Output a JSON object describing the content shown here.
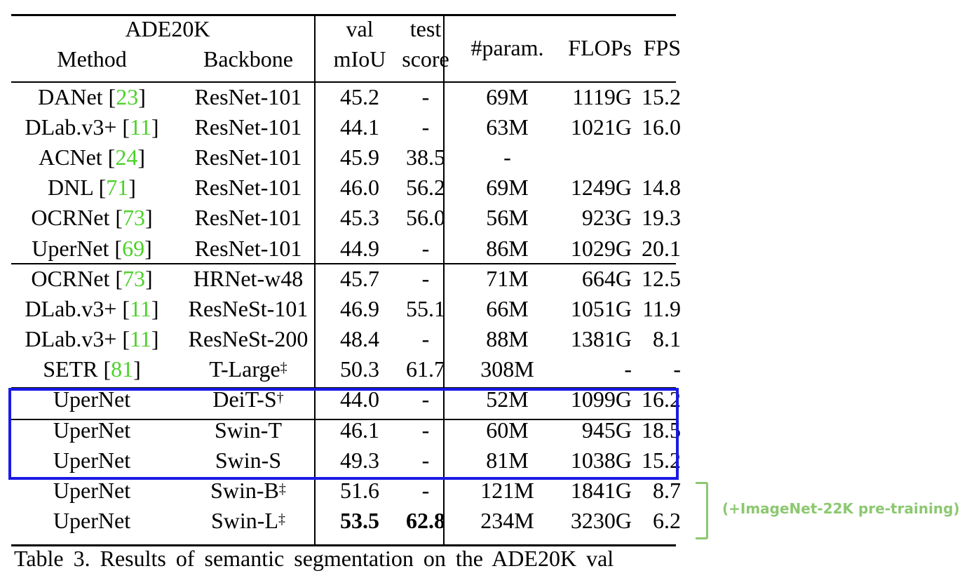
{
  "table": {
    "header": {
      "dataset": "ADE20K",
      "method": "Method",
      "backbone": "Backbone",
      "val_top": "val",
      "val_bottom": "mIoU",
      "test_top": "test",
      "test_bottom": "score",
      "param": "#param.",
      "flops": "FLOPs",
      "fps": "FPS"
    },
    "rows": [
      {
        "method": "DANet [",
        "cite": "23",
        "close": "]",
        "backbone": "ResNet-101",
        "sup": "",
        "val": "45.2",
        "test": "-",
        "param": "69M",
        "flops": "1119G",
        "fps": "15.2"
      },
      {
        "method": "DLab.v3+ [",
        "cite": "11",
        "close": "]",
        "backbone": "ResNet-101",
        "sup": "",
        "val": "44.1",
        "test": "-",
        "param": "63M",
        "flops": "1021G",
        "fps": "16.0"
      },
      {
        "method": "ACNet [",
        "cite": "24",
        "close": "]",
        "backbone": "ResNet-101",
        "sup": "",
        "val": "45.9",
        "test": "38.5",
        "param": "-",
        "flops": "",
        "fps": ""
      },
      {
        "method": "DNL [",
        "cite": "71",
        "close": "]",
        "backbone": "ResNet-101",
        "sup": "",
        "val": "46.0",
        "test": "56.2",
        "param": "69M",
        "flops": "1249G",
        "fps": "14.8"
      },
      {
        "method": "OCRNet [",
        "cite": "73",
        "close": "]",
        "backbone": "ResNet-101",
        "sup": "",
        "val": "45.3",
        "test": "56.0",
        "param": "56M",
        "flops": "923G",
        "fps": "19.3"
      },
      {
        "method": "UperNet [",
        "cite": "69",
        "close": "]",
        "backbone": "ResNet-101",
        "sup": "",
        "val": "44.9",
        "test": "-",
        "param": "86M",
        "flops": "1029G",
        "fps": "20.1"
      },
      {
        "method": "OCRNet [",
        "cite": "73",
        "close": "]",
        "backbone": "HRNet-w48",
        "sup": "",
        "val": "45.7",
        "test": "-",
        "param": "71M",
        "flops": "664G",
        "fps": "12.5"
      },
      {
        "method": "DLab.v3+ [",
        "cite": "11",
        "close": "]",
        "backbone": "ResNeSt-101",
        "sup": "",
        "val": "46.9",
        "test": "55.1",
        "param": "66M",
        "flops": "1051G",
        "fps": "11.9"
      },
      {
        "method": "DLab.v3+ [",
        "cite": "11",
        "close": "]",
        "backbone": "ResNeSt-200",
        "sup": "",
        "val": "48.4",
        "test": "-",
        "param": "88M",
        "flops": "1381G",
        "fps": "8.1"
      },
      {
        "method": "SETR [",
        "cite": "81",
        "close": "]",
        "backbone": "T-Large",
        "sup": "‡",
        "val": "50.3",
        "test": "61.7",
        "param": "308M",
        "flops": "-",
        "fps": "-"
      },
      {
        "method": "UperNet",
        "cite": "",
        "close": "",
        "backbone": "DeiT-S",
        "sup": "†",
        "val": "44.0",
        "test": "-",
        "param": "52M",
        "flops": "1099G",
        "fps": "16.2"
      },
      {
        "method": "UperNet",
        "cite": "",
        "close": "",
        "backbone": "Swin-T",
        "sup": "",
        "val": "46.1",
        "test": "-",
        "param": "60M",
        "flops": "945G",
        "fps": "18.5"
      },
      {
        "method": "UperNet",
        "cite": "",
        "close": "",
        "backbone": "Swin-S",
        "sup": "",
        "val": "49.3",
        "test": "-",
        "param": "81M",
        "flops": "1038G",
        "fps": "15.2"
      },
      {
        "method": "UperNet",
        "cite": "",
        "close": "",
        "backbone": "Swin-B",
        "sup": "‡",
        "val": "51.6",
        "test": "-",
        "param": "121M",
        "flops": "1841G",
        "fps": "8.7"
      },
      {
        "method": "UperNet",
        "cite": "",
        "close": "",
        "backbone": "Swin-L",
        "sup": "‡",
        "val": "53.5",
        "test": "62.8",
        "param": "234M",
        "flops": "3230G",
        "fps": "6.2",
        "bold_val": true,
        "bold_test": true
      }
    ]
  },
  "annotation": {
    "note": "(+ImageNet-22K pre-training)",
    "highlight_color": "#1a1ae6",
    "note_color": "#8cc870",
    "cite_color": "#4dd12a"
  },
  "caption": "Table 3. Results of semantic segmentation on the ADE20K val"
}
